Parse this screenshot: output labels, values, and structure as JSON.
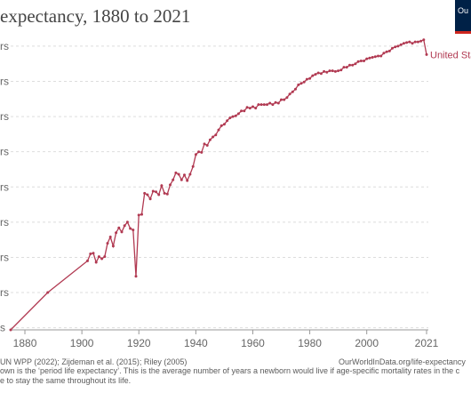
{
  "header": {
    "title": "expectancy, 1880 to 2021",
    "logo_text": "Ou"
  },
  "footer": {
    "sources": "UN WPP (2022); Zijdeman et al. (2015); Riley (2005)",
    "site": "OurWorldInData.org/life-expectancy",
    "note_line1": "own is the ‘period life expectancy’. This is the average number of years a newborn would live if age-specific mortality rates in the c",
    "note_line2": "e to stay the same throughout its life."
  },
  "colors": {
    "series": "#b13a52",
    "grid": "#dddddd",
    "tick_label": "#666666"
  },
  "chart_data": {
    "type": "line",
    "title": "expectancy, 1880 to 2021",
    "xlabel": "",
    "ylabel": "",
    "xlim": [
      1875,
      2021
    ],
    "ylim": [
      39.7,
      81.5
    ],
    "grid": true,
    "x_ticks": [
      1880,
      1900,
      1920,
      1940,
      1960,
      1980,
      2000,
      2021
    ],
    "y_ticks": [
      {
        "value": 40,
        "label": "s"
      },
      {
        "value": 45,
        "label": "rs"
      },
      {
        "value": 50,
        "label": "rs"
      },
      {
        "value": 55,
        "label": "rs"
      },
      {
        "value": 60,
        "label": "rs"
      },
      {
        "value": 65,
        "label": "rs"
      },
      {
        "value": 70,
        "label": "rs"
      },
      {
        "value": 75,
        "label": "rs"
      },
      {
        "value": 80,
        "label": "rs"
      }
    ],
    "series": [
      {
        "name": "United Sta",
        "x": [
          1875,
          1888,
          1902,
          1903,
          1904,
          1905,
          1906,
          1907,
          1908,
          1909,
          1910,
          1911,
          1912,
          1913,
          1914,
          1915,
          1916,
          1917,
          1918,
          1919,
          1920,
          1921,
          1922,
          1923,
          1924,
          1925,
          1926,
          1927,
          1928,
          1929,
          1930,
          1931,
          1932,
          1933,
          1934,
          1935,
          1936,
          1937,
          1938,
          1939,
          1940,
          1941,
          1942,
          1943,
          1944,
          1945,
          1946,
          1947,
          1948,
          1949,
          1950,
          1951,
          1952,
          1953,
          1954,
          1955,
          1956,
          1957,
          1958,
          1959,
          1960,
          1961,
          1962,
          1963,
          1964,
          1965,
          1966,
          1967,
          1968,
          1969,
          1970,
          1971,
          1972,
          1973,
          1974,
          1975,
          1976,
          1977,
          1978,
          1979,
          1980,
          1981,
          1982,
          1983,
          1984,
          1985,
          1986,
          1987,
          1988,
          1989,
          1990,
          1991,
          1992,
          1993,
          1994,
          1995,
          1996,
          1997,
          1998,
          1999,
          2000,
          2001,
          2002,
          2003,
          2004,
          2005,
          2006,
          2007,
          2008,
          2009,
          2010,
          2011,
          2012,
          2013,
          2014,
          2015,
          2016,
          2017,
          2018,
          2019,
          2020,
          2021
        ],
        "y": [
          39.7,
          45.0,
          49.5,
          50.5,
          50.6,
          49.3,
          50.1,
          49.8,
          50.1,
          52.0,
          52.9,
          51.6,
          53.5,
          54.2,
          53.6,
          54.5,
          55.0,
          54.1,
          53.9,
          47.3,
          56.0,
          56.1,
          59.1,
          58.9,
          58.3,
          59.4,
          59.3,
          58.9,
          60.2,
          59.1,
          59.0,
          60.3,
          61.0,
          62.0,
          61.8,
          61.0,
          61.7,
          60.9,
          61.8,
          62.9,
          64.6,
          65.0,
          64.9,
          66.1,
          65.9,
          66.7,
          67.1,
          67.4,
          68.1,
          68.7,
          68.9,
          69.4,
          69.8,
          70.0,
          70.1,
          70.4,
          70.8,
          70.8,
          71.3,
          71.2,
          71.4,
          71.2,
          71.7,
          71.7,
          71.7,
          71.7,
          71.9,
          71.7,
          72.0,
          71.9,
          72.4,
          72.4,
          72.7,
          73.2,
          73.5,
          73.9,
          74.5,
          74.7,
          74.9,
          75.3,
          75.4,
          75.8,
          76.0,
          76.2,
          76.1,
          76.4,
          76.3,
          76.5,
          76.5,
          76.4,
          76.5,
          76.6,
          77.0,
          77.0,
          77.3,
          77.3,
          77.5,
          77.8,
          77.9,
          77.9,
          78.2,
          78.3,
          78.4,
          78.5,
          78.6,
          78.6,
          79.0,
          79.2,
          79.3,
          79.7,
          79.9,
          80.0,
          80.2,
          80.4,
          80.5,
          80.6,
          80.4,
          80.6,
          80.6,
          80.7,
          80.9,
          78.8
        ]
      }
    ]
  }
}
